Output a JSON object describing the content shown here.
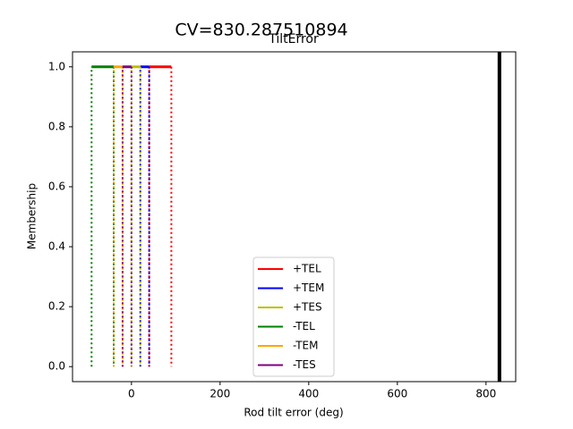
{
  "chart_data": {
    "type": "line",
    "suptitle": "CV=830.287510894",
    "title": "TiltError",
    "x_label": "Rod tilt error (deg)",
    "y_label": "Membership",
    "xlim": [
      -133,
      867
    ],
    "ylim": [
      -0.05,
      1.05
    ],
    "xticks": [
      0,
      200,
      400,
      600,
      800
    ],
    "yticks": [
      {
        "value": 0,
        "label": "0.0"
      },
      {
        "value": 0.2,
        "label": "0.2"
      },
      {
        "value": 0.4,
        "label": "0.4"
      },
      {
        "value": 0.6,
        "label": "0.6"
      },
      {
        "value": 0.8,
        "label": "0.8"
      },
      {
        "value": 1,
        "label": "1.0"
      }
    ],
    "series": [
      {
        "name": "+TEL",
        "color": "#ff0000",
        "x": [
          40,
          40,
          90,
          90
        ],
        "values": [
          0,
          1,
          1,
          0
        ]
      },
      {
        "name": "+TEM",
        "color": "#0000ff",
        "x": [
          20,
          20,
          40,
          40
        ],
        "values": [
          0,
          1,
          1,
          0
        ]
      },
      {
        "name": "+TES",
        "color": "#bfbf00",
        "x": [
          0,
          0,
          20,
          20
        ],
        "values": [
          0,
          1,
          1,
          0
        ]
      },
      {
        "name": "-TEL",
        "color": "#008000",
        "x": [
          -90,
          -90,
          -40,
          -40
        ],
        "values": [
          0,
          1,
          1,
          0
        ]
      },
      {
        "name": "-TEM",
        "color": "#ffa500",
        "x": [
          -40,
          -40,
          -20,
          -20
        ],
        "values": [
          0,
          1,
          1,
          0
        ]
      },
      {
        "name": "-TES",
        "color": "#800080",
        "x": [
          -20,
          -20,
          0,
          0
        ],
        "values": [
          0,
          1,
          1,
          0
        ]
      }
    ],
    "vlines": [
      {
        "x": 830.287510894,
        "color": "#000000"
      }
    ]
  }
}
